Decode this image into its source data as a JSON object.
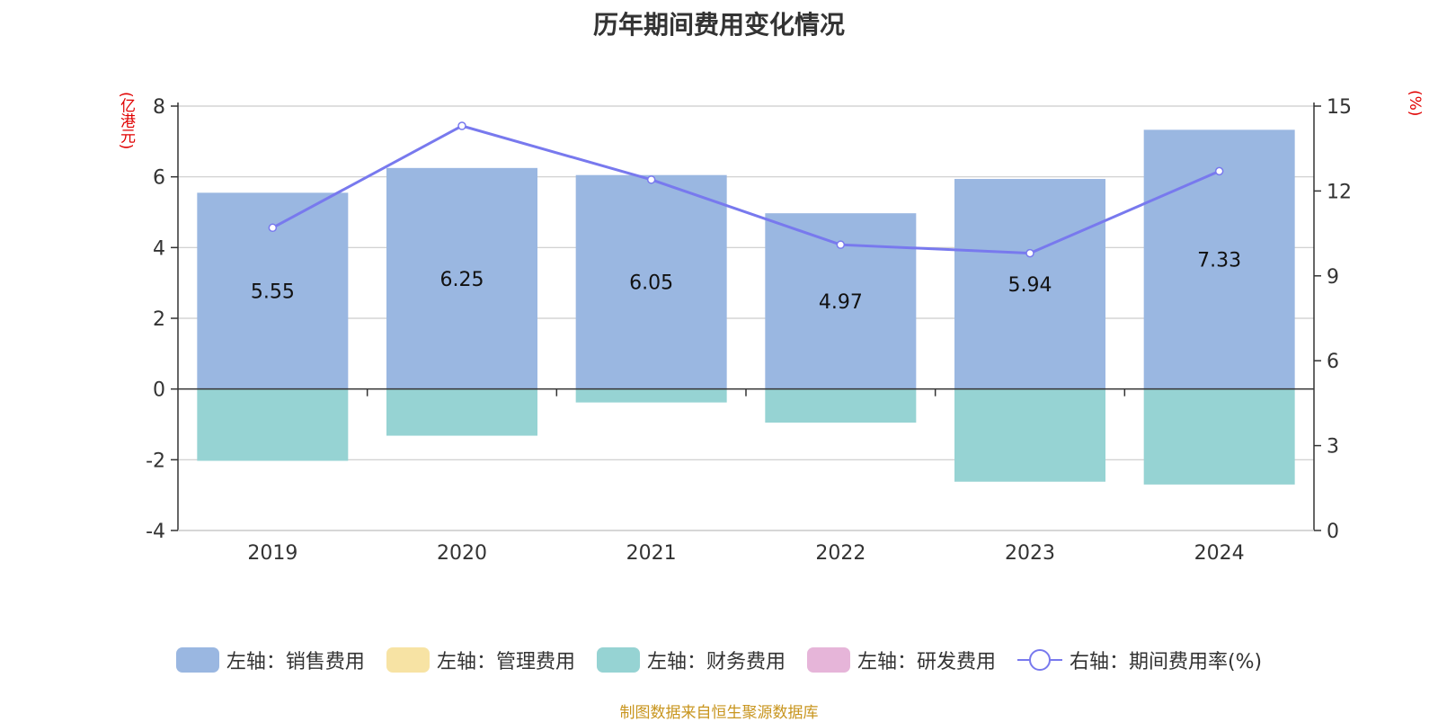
{
  "chart_data": {
    "type": "bar",
    "title": "历年期间费用变化情况",
    "categories": [
      "2019",
      "2020",
      "2021",
      "2022",
      "2023",
      "2024"
    ],
    "left_axis": {
      "unit": "(亿港元)",
      "ylim": [
        -4,
        8
      ],
      "ticks": [
        -4,
        -2,
        0,
        2,
        4,
        6,
        8
      ]
    },
    "right_axis": {
      "unit": "(%)",
      "ylim": [
        0,
        15
      ],
      "ticks": [
        0,
        3,
        6,
        9,
        12,
        15
      ]
    },
    "series": [
      {
        "name": "左轴：销售费用",
        "axis": "left",
        "type": "bar",
        "color": "#9ab7e1",
        "values": [
          5.55,
          6.25,
          6.05,
          4.97,
          5.94,
          7.33
        ],
        "show_labels": true
      },
      {
        "name": "左轴：管理费用",
        "axis": "left",
        "type": "bar",
        "color": "#f7e3a4",
        "values": [
          0,
          0,
          0,
          0,
          0,
          0
        ]
      },
      {
        "name": "左轴：财务费用",
        "axis": "left",
        "type": "bar",
        "color": "#96d3d3",
        "values": [
          -2.03,
          -1.32,
          -0.38,
          -0.95,
          -2.62,
          -2.7
        ]
      },
      {
        "name": "左轴：研发费用",
        "axis": "left",
        "type": "bar",
        "color": "#e6b5d9",
        "values": [
          0,
          0,
          0,
          0,
          0,
          0
        ]
      },
      {
        "name": "右轴：期间费用率(%)",
        "axis": "right",
        "type": "line",
        "color": "#7879ee",
        "values": [
          10.7,
          14.3,
          12.4,
          10.1,
          9.8,
          12.7
        ]
      }
    ],
    "grid": true,
    "legend_position": "bottom-center"
  },
  "source": "制图数据来自恒生聚源数据库"
}
